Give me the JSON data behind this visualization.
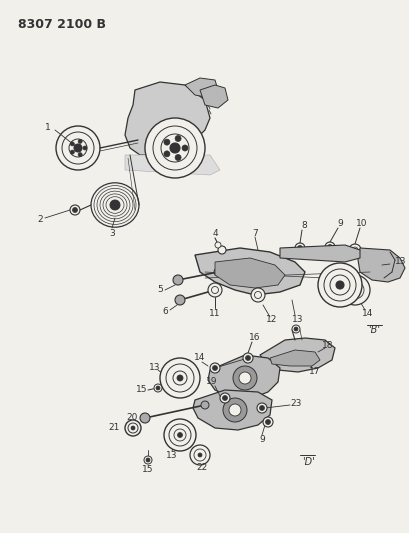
{
  "title": "8307 2100 B",
  "bg": "#f2f0eb",
  "lc": "#333333",
  "fig_w": 4.1,
  "fig_h": 5.33,
  "dpi": 100
}
